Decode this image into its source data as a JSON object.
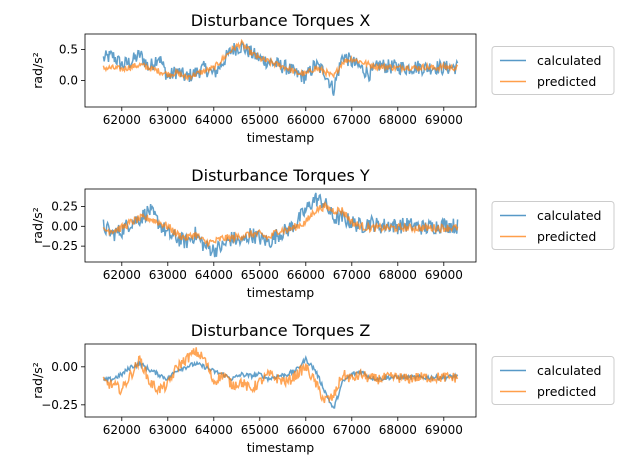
{
  "chart_data": [
    {
      "type": "line",
      "title": "Disturbance Torques X",
      "xlabel": "timestamp",
      "ylabel": "rad/s²",
      "xlim": [
        61200,
        69700
      ],
      "ylim": [
        -0.43,
        0.75
      ],
      "xticks": [
        62000,
        63000,
        64000,
        65000,
        66000,
        67000,
        68000,
        69000
      ],
      "xtick_labels": [
        "62000",
        "63000",
        "64000",
        "65000",
        "66000",
        "67000",
        "68000",
        "69000"
      ],
      "yticks": [
        0.5,
        0.0
      ],
      "ytick_labels": [
        "0.5",
        "0.0"
      ],
      "legend_position": "right-outside",
      "series": [
        {
          "name": "calculated",
          "color": "#1f77b4",
          "x": [
            61600,
            61800,
            62000,
            62200,
            62400,
            62600,
            62800,
            63000,
            63200,
            63400,
            63600,
            63800,
            64000,
            64200,
            64400,
            64600,
            64800,
            65000,
            65200,
            65400,
            65600,
            65800,
            66000,
            66200,
            66400,
            66600,
            66800,
            67000,
            67200,
            67400,
            67600,
            67800,
            68000,
            68200,
            68400,
            68600,
            68800,
            69000,
            69300
          ],
          "y": [
            0.35,
            0.4,
            0.25,
            0.3,
            0.42,
            0.2,
            0.4,
            0.05,
            0.15,
            0.05,
            0.12,
            0.2,
            0.1,
            0.3,
            0.5,
            0.55,
            0.45,
            0.35,
            0.3,
            0.25,
            0.2,
            0.1,
            0.05,
            0.25,
            0.15,
            -0.15,
            0.4,
            0.3,
            0.2,
            0.1,
            0.25,
            0.22,
            0.22,
            0.2,
            0.22,
            0.2,
            0.22,
            0.2,
            0.22
          ],
          "noise": 0.12
        },
        {
          "name": "predicted",
          "color": "#ff7f0e",
          "x": [
            61600,
            61800,
            62000,
            62200,
            62400,
            62600,
            62800,
            63000,
            63200,
            63400,
            63600,
            63800,
            64000,
            64200,
            64400,
            64600,
            64800,
            65000,
            65200,
            65400,
            65600,
            65800,
            66000,
            66200,
            66400,
            66600,
            66800,
            67000,
            67200,
            67400,
            67600,
            67800,
            68000,
            68200,
            68400,
            68600,
            68800,
            69000,
            69300
          ],
          "y": [
            0.2,
            0.2,
            0.18,
            0.22,
            0.25,
            0.2,
            0.15,
            0.1,
            0.12,
            0.05,
            0.1,
            0.15,
            0.2,
            0.35,
            0.5,
            0.6,
            0.45,
            0.35,
            0.3,
            0.25,
            0.2,
            0.12,
            0.1,
            0.2,
            0.15,
            0.05,
            0.3,
            0.35,
            0.3,
            0.25,
            0.22,
            0.22,
            0.2,
            0.22,
            0.2,
            0.22,
            0.2,
            0.22,
            0.2
          ],
          "noise": 0.05
        }
      ]
    },
    {
      "type": "line",
      "title": "Disturbance Torques Y",
      "xlabel": "timestamp",
      "ylabel": "rad/s²",
      "xlim": [
        61200,
        69700
      ],
      "ylim": [
        -0.45,
        0.47
      ],
      "xticks": [
        62000,
        63000,
        64000,
        65000,
        66000,
        67000,
        68000,
        69000
      ],
      "xtick_labels": [
        "62000",
        "63000",
        "64000",
        "65000",
        "66000",
        "67000",
        "68000",
        "69000"
      ],
      "yticks": [
        0.25,
        0.0,
        -0.25
      ],
      "ytick_labels": [
        "0.25",
        "0.00",
        "−0.25"
      ],
      "legend_position": "right-outside",
      "series": [
        {
          "name": "calculated",
          "color": "#1f77b4",
          "x": [
            61600,
            61800,
            62000,
            62200,
            62400,
            62600,
            62800,
            63000,
            63200,
            63400,
            63600,
            63800,
            64000,
            64200,
            64400,
            64600,
            64800,
            65000,
            65200,
            65400,
            65600,
            65800,
            66000,
            66200,
            66400,
            66600,
            66800,
            67000,
            67200,
            67400,
            67600,
            67800,
            68000,
            68200,
            68400,
            68600,
            68800,
            69000,
            69300
          ],
          "y": [
            0.0,
            -0.1,
            -0.05,
            0.05,
            0.1,
            0.2,
            0.05,
            -0.1,
            -0.15,
            -0.2,
            -0.1,
            -0.25,
            -0.3,
            -0.25,
            -0.15,
            -0.2,
            -0.1,
            -0.15,
            -0.2,
            -0.1,
            -0.05,
            0.05,
            0.2,
            0.35,
            0.3,
            0.1,
            0.1,
            0.05,
            0.0,
            0.05,
            0.0,
            0.02,
            0.0,
            0.02,
            0.0,
            -0.02,
            0.0,
            0.02,
            0.0
          ],
          "noise": 0.1
        },
        {
          "name": "predicted",
          "color": "#ff7f0e",
          "x": [
            61600,
            61800,
            62000,
            62200,
            62400,
            62600,
            62800,
            63000,
            63200,
            63400,
            63600,
            63800,
            64000,
            64200,
            64400,
            64600,
            64800,
            65000,
            65200,
            65400,
            65600,
            65800,
            66000,
            66200,
            66400,
            66600,
            66800,
            67000,
            67200,
            67400,
            67600,
            67800,
            68000,
            68200,
            68400,
            68600,
            68800,
            69000,
            69300
          ],
          "y": [
            -0.05,
            -0.05,
            -0.02,
            0.05,
            0.1,
            0.1,
            0.05,
            0.0,
            -0.1,
            -0.15,
            -0.1,
            -0.2,
            -0.2,
            -0.15,
            -0.15,
            -0.12,
            -0.1,
            -0.1,
            -0.15,
            -0.05,
            -0.05,
            0.0,
            0.05,
            0.2,
            0.25,
            0.2,
            0.2,
            0.05,
            0.0,
            -0.02,
            -0.02,
            -0.02,
            -0.02,
            -0.02,
            -0.02,
            -0.02,
            -0.02,
            -0.02,
            -0.02
          ],
          "noise": 0.05
        }
      ]
    },
    {
      "type": "line",
      "title": "Disturbance Torques Z",
      "xlabel": "timestamp",
      "ylabel": "rad/s²",
      "xlim": [
        61200,
        69700
      ],
      "ylim": [
        -0.33,
        0.15
      ],
      "xticks": [
        62000,
        63000,
        64000,
        65000,
        66000,
        67000,
        68000,
        69000
      ],
      "xtick_labels": [
        "62000",
        "63000",
        "64000",
        "65000",
        "66000",
        "67000",
        "68000",
        "69000"
      ],
      "yticks": [
        0.0,
        -0.25
      ],
      "ytick_labels": [
        "0.00",
        "−0.25"
      ],
      "legend_position": "right-outside",
      "series": [
        {
          "name": "calculated",
          "color": "#1f77b4",
          "x": [
            61600,
            61800,
            62000,
            62200,
            62400,
            62600,
            62800,
            63000,
            63200,
            63400,
            63600,
            63800,
            64000,
            64200,
            64400,
            64600,
            64800,
            65000,
            65200,
            65400,
            65600,
            65800,
            66000,
            66200,
            66400,
            66600,
            66800,
            67000,
            67200,
            67400,
            67600,
            67800,
            68000,
            68200,
            68400,
            68600,
            68800,
            69000,
            69300
          ],
          "y": [
            -0.09,
            -0.08,
            -0.05,
            0.0,
            0.02,
            -0.02,
            -0.05,
            -0.08,
            -0.02,
            0.0,
            0.02,
            0.0,
            -0.03,
            -0.05,
            -0.08,
            -0.05,
            -0.06,
            -0.05,
            -0.08,
            -0.06,
            -0.05,
            -0.02,
            0.05,
            -0.02,
            -0.15,
            -0.28,
            -0.1,
            -0.05,
            -0.03,
            -0.07,
            -0.08,
            -0.07,
            -0.07,
            -0.07,
            -0.07,
            -0.07,
            -0.07,
            -0.07,
            -0.06
          ],
          "noise": 0.015
        },
        {
          "name": "predicted",
          "color": "#ff7f0e",
          "x": [
            61600,
            61800,
            62000,
            62200,
            62400,
            62600,
            62800,
            63000,
            63200,
            63400,
            63600,
            63800,
            64000,
            64200,
            64400,
            64600,
            64800,
            65000,
            65200,
            65400,
            65600,
            65800,
            66000,
            66200,
            66400,
            66600,
            66800,
            67000,
            67200,
            67400,
            67600,
            67800,
            68000,
            68200,
            68400,
            68600,
            68800,
            69000,
            69300
          ],
          "y": [
            -0.1,
            -0.12,
            -0.15,
            -0.05,
            0.05,
            -0.1,
            -0.15,
            -0.12,
            0.0,
            0.05,
            0.1,
            0.05,
            -0.1,
            -0.05,
            -0.12,
            -0.1,
            -0.15,
            -0.1,
            -0.05,
            -0.08,
            -0.1,
            -0.05,
            0.0,
            -0.1,
            -0.22,
            -0.2,
            -0.05,
            -0.08,
            -0.05,
            -0.08,
            -0.08,
            -0.07,
            -0.07,
            -0.08,
            -0.07,
            -0.07,
            -0.07,
            -0.07,
            -0.07
          ],
          "noise": 0.035
        }
      ]
    }
  ]
}
